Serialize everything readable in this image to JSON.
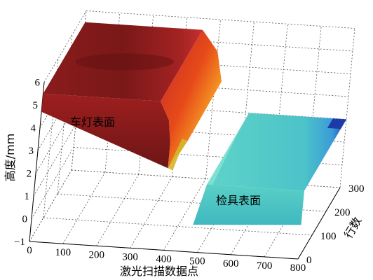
{
  "chart_data": {
    "type": "surface3d",
    "title": "",
    "xlabel": "激光扫描数据点",
    "ylabel": "行数",
    "zlabel": "高度/mm",
    "xlim": [
      0,
      800
    ],
    "ylim": [
      0,
      300
    ],
    "zlim": [
      -1,
      6
    ],
    "x_ticks": [
      "0",
      "100",
      "200",
      "300",
      "400",
      "500",
      "600",
      "700",
      "800"
    ],
    "y_ticks": [
      "0",
      "100",
      "200",
      "300"
    ],
    "z_ticks": [
      "−1",
      "0",
      "1",
      "2",
      "3",
      "4",
      "5",
      "6"
    ],
    "grid": true,
    "series": [
      {
        "name": "车灯表面",
        "x_range": [
          0,
          420
        ],
        "y_range": [
          0,
          300
        ],
        "plateau_height": 5.5,
        "edge_drop_to": 2.6,
        "colormap": "dark-red to yellow-green at edge"
      },
      {
        "name": "检具表面",
        "x_range": [
          480,
          800
        ],
        "y_range": [
          0,
          300
        ],
        "plateau_height": 2.0,
        "edge_drop_to": 0.2,
        "colormap": "cyan to blue at far edge"
      }
    ],
    "annotations": [
      "车灯表面",
      "检具表面"
    ]
  }
}
